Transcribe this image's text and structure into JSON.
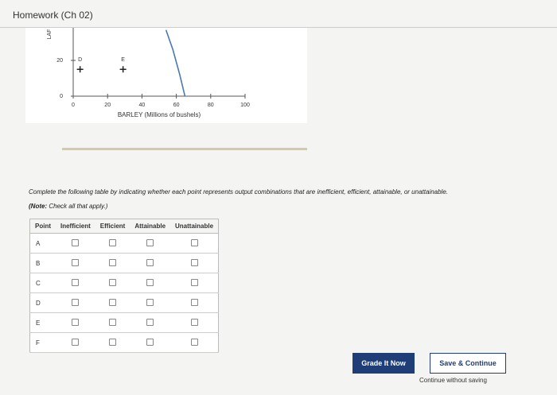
{
  "header": {
    "title": "Homework (Ch 02)"
  },
  "graph": {
    "y_label": "LAF",
    "x_label": "BARLEY (Millions of bushels)",
    "xlim": [
      0,
      100
    ],
    "xticks": [
      0,
      20,
      40,
      60,
      80,
      100
    ],
    "yticks": [
      0,
      20
    ],
    "curve": {
      "x": [
        54,
        58,
        62,
        65
      ],
      "y": [
        37,
        26,
        12,
        0
      ]
    },
    "points": [
      {
        "label": "D",
        "x": 4,
        "y": 15
      },
      {
        "label": "E",
        "x": 29,
        "y": 15
      }
    ]
  },
  "instructions": {
    "text": "Complete the following table by indicating whether each point represents output combinations that are inefficient, efficient, attainable, or unattainable.",
    "note_label": "(Note:",
    "note_text": "Check all that apply.)"
  },
  "table": {
    "columns": [
      "Point",
      "Inefficient",
      "Efficient",
      "Attainable",
      "Unattainable"
    ],
    "rows": [
      "A",
      "B",
      "C",
      "D",
      "E",
      "F"
    ]
  },
  "buttons": {
    "grade": "Grade It Now",
    "save": "Save & Continue",
    "skip": "Continue without saving"
  }
}
